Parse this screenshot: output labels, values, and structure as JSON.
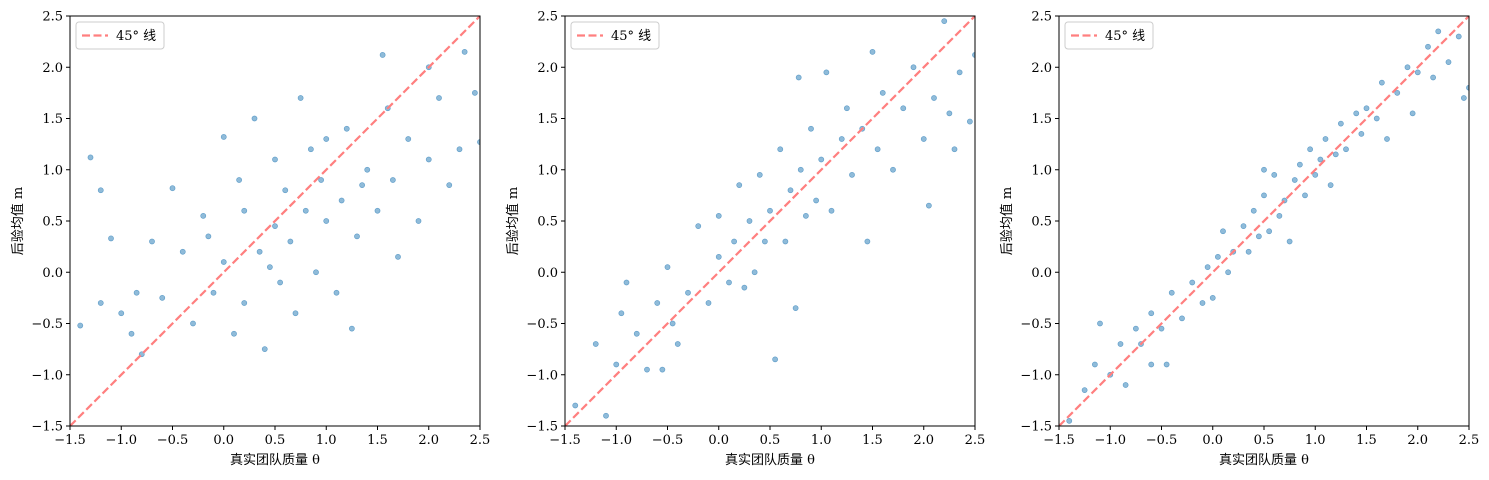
{
  "chart_data": [
    {
      "type": "scatter",
      "xlabel": "真实团队质量 θ",
      "ylabel": "后验均值 m",
      "color": "#1f77b4",
      "diagonal": {
        "label": "45° 线",
        "color": "#ff7f7f",
        "style": "dashed"
      },
      "legend": "upper left",
      "xlim": [
        -1.5,
        2.5
      ],
      "ylim": [
        -1.5,
        2.5
      ],
      "xticks": [
        {
          "value": -1.5,
          "label": "−1.5"
        },
        {
          "value": -1,
          "label": "−1.0"
        },
        {
          "value": -0.5,
          "label": "−0.5"
        },
        {
          "value": 0,
          "label": "0.0"
        },
        0.5,
        {
          "value": 1,
          "label": "1.0"
        },
        1.5,
        {
          "value": 2,
          "label": "2.0"
        },
        2.5
      ],
      "yticks": [
        {
          "value": -1.5,
          "label": "−1.5"
        },
        {
          "value": -1,
          "label": "−1.0"
        },
        {
          "value": -0.5,
          "label": "−0.5"
        },
        {
          "value": 0,
          "label": "0.0"
        },
        0.5,
        {
          "value": 1,
          "label": "1.0"
        },
        1.5,
        {
          "value": 2,
          "label": "2.0"
        },
        2.5
      ],
      "x": [
        -1.3,
        -1.4,
        -1.2,
        -1.2,
        -1.1,
        -1.0,
        -0.9,
        -0.8,
        -0.7,
        -0.6,
        -0.5,
        -0.4,
        -0.3,
        -0.2,
        -0.1,
        0.0,
        0.0,
        0.1,
        0.2,
        0.2,
        0.3,
        0.35,
        0.4,
        0.5,
        0.5,
        0.55,
        0.6,
        0.65,
        0.7,
        0.75,
        0.8,
        0.85,
        0.9,
        0.95,
        1.0,
        1.0,
        1.1,
        1.15,
        1.2,
        1.25,
        1.3,
        1.4,
        1.5,
        1.55,
        1.6,
        1.65,
        1.7,
        1.8,
        1.9,
        2.0,
        2.0,
        2.1,
        2.2,
        2.3,
        2.35,
        2.45,
        2.5,
        -0.85,
        0.45,
        1.35,
        -0.15,
        0.15
      ],
      "values": [
        1.12,
        -0.52,
        0.8,
        -0.3,
        0.33,
        -0.4,
        -0.6,
        -0.8,
        0.3,
        -0.25,
        0.82,
        0.2,
        -0.5,
        0.55,
        -0.2,
        1.32,
        0.1,
        -0.6,
        0.6,
        -0.3,
        1.5,
        0.2,
        -0.75,
        1.1,
        0.45,
        -0.1,
        0.8,
        0.3,
        -0.4,
        1.7,
        0.6,
        1.2,
        0.0,
        0.9,
        1.3,
        0.5,
        -0.2,
        0.7,
        1.4,
        -0.55,
        0.35,
        1.0,
        0.6,
        2.12,
        1.6,
        0.9,
        0.15,
        1.3,
        0.5,
        1.1,
        2.0,
        1.7,
        0.85,
        1.2,
        2.15,
        1.75,
        1.27,
        -0.2,
        0.05,
        0.85,
        0.35,
        0.9
      ]
    },
    {
      "type": "scatter",
      "xlabel": "真实团队质量 θ",
      "ylabel": "后验均值 m",
      "color": "#1f77b4",
      "diagonal": {
        "label": "45° 线",
        "color": "#ff7f7f",
        "style": "dashed"
      },
      "legend": "upper left",
      "xlim": [
        -1.5,
        2.5
      ],
      "ylim": [
        -1.5,
        2.5
      ],
      "xticks": [
        {
          "value": -1.5,
          "label": "−1.5"
        },
        {
          "value": -1,
          "label": "−1.0"
        },
        {
          "value": -0.5,
          "label": "−0.5"
        },
        {
          "value": 0,
          "label": "0.0"
        },
        0.5,
        {
          "value": 1,
          "label": "1.0"
        },
        1.5,
        {
          "value": 2,
          "label": "2.0"
        },
        2.5
      ],
      "yticks": [
        {
          "value": -1.5,
          "label": "−1.5"
        },
        {
          "value": -1,
          "label": "−1.0"
        },
        {
          "value": -0.5,
          "label": "−0.5"
        },
        {
          "value": 0,
          "label": "0.0"
        },
        0.5,
        {
          "value": 1,
          "label": "1.0"
        },
        1.5,
        {
          "value": 2,
          "label": "2.0"
        },
        2.5
      ],
      "x": [
        -1.4,
        -1.2,
        -1.1,
        -1.0,
        -0.95,
        -0.9,
        -0.8,
        -0.7,
        -0.6,
        -0.5,
        -0.45,
        -0.4,
        -0.3,
        -0.2,
        -0.1,
        0.0,
        0.0,
        0.1,
        0.15,
        0.2,
        0.25,
        0.3,
        0.35,
        0.4,
        0.45,
        0.5,
        0.55,
        0.6,
        0.65,
        0.7,
        0.75,
        0.8,
        0.85,
        0.9,
        0.95,
        1.0,
        1.05,
        1.1,
        1.2,
        1.25,
        1.3,
        1.4,
        1.45,
        1.5,
        1.55,
        1.6,
        1.7,
        1.8,
        1.9,
        2.0,
        2.05,
        2.1,
        2.2,
        2.25,
        2.3,
        2.35,
        2.45,
        2.5,
        0.78,
        -0.55
      ],
      "values": [
        -1.3,
        -0.7,
        -1.4,
        -0.9,
        -0.4,
        -0.1,
        -0.6,
        -0.95,
        -0.3,
        0.05,
        -0.5,
        -0.7,
        -0.2,
        0.45,
        -0.3,
        0.15,
        0.55,
        -0.1,
        0.3,
        0.85,
        -0.15,
        0.5,
        0.0,
        0.95,
        0.3,
        0.6,
        -0.85,
        1.2,
        0.3,
        0.8,
        -0.35,
        1.0,
        0.55,
        1.4,
        0.7,
        1.1,
        1.95,
        0.6,
        1.3,
        1.6,
        0.95,
        1.4,
        0.3,
        2.15,
        1.2,
        1.75,
        1.0,
        1.6,
        2.0,
        1.3,
        0.65,
        1.7,
        2.45,
        1.55,
        1.2,
        1.95,
        1.47,
        2.12,
        1.9,
        -0.95
      ]
    },
    {
      "type": "scatter",
      "xlabel": "真实团队质量 θ",
      "ylabel": "后验均值 m",
      "color": "#1f77b4",
      "diagonal": {
        "label": "45° 线",
        "color": "#ff7f7f",
        "style": "dashed"
      },
      "legend": "upper left",
      "xlim": [
        -1.5,
        2.5
      ],
      "ylim": [
        -1.5,
        2.5
      ],
      "xticks": [
        {
          "value": -1.5,
          "label": "−1.5"
        },
        {
          "value": -1,
          "label": "−1.0"
        },
        {
          "value": -0.5,
          "label": "−0.5"
        },
        {
          "value": 0,
          "label": "0.0"
        },
        0.5,
        {
          "value": 1,
          "label": "1.0"
        },
        1.5,
        {
          "value": 2,
          "label": "2.0"
        },
        2.5
      ],
      "yticks": [
        {
          "value": -1.5,
          "label": "−1.5"
        },
        {
          "value": -1,
          "label": "−1.0"
        },
        {
          "value": -0.5,
          "label": "−0.5"
        },
        {
          "value": 0,
          "label": "0.0"
        },
        0.5,
        {
          "value": 1,
          "label": "1.0"
        },
        1.5,
        {
          "value": 2,
          "label": "2.0"
        },
        2.5
      ],
      "x": [
        -1.4,
        -1.25,
        -1.15,
        -1.1,
        -1.0,
        -0.9,
        -0.85,
        -0.75,
        -0.7,
        -0.6,
        -0.5,
        -0.45,
        -0.4,
        -0.3,
        -0.2,
        -0.1,
        -0.05,
        0.0,
        0.05,
        0.1,
        0.15,
        0.2,
        0.3,
        0.35,
        0.4,
        0.45,
        0.5,
        0.55,
        0.6,
        0.65,
        0.7,
        0.75,
        0.8,
        0.85,
        0.9,
        0.95,
        1.0,
        1.05,
        1.1,
        1.15,
        1.2,
        1.25,
        1.3,
        1.4,
        1.45,
        1.5,
        1.6,
        1.65,
        1.7,
        1.8,
        1.9,
        1.95,
        2.0,
        2.1,
        2.15,
        2.2,
        2.3,
        2.4,
        2.45,
        2.5,
        -0.6,
        0.5
      ],
      "values": [
        -1.45,
        -1.15,
        -0.9,
        -0.5,
        -1.0,
        -0.7,
        -1.1,
        -0.55,
        -0.7,
        -0.4,
        -0.55,
        -0.9,
        -0.2,
        -0.45,
        -0.1,
        -0.3,
        0.05,
        -0.25,
        0.15,
        0.4,
        0.0,
        0.2,
        0.45,
        0.2,
        0.6,
        0.35,
        0.75,
        0.4,
        0.95,
        0.55,
        0.7,
        0.3,
        0.9,
        1.05,
        0.75,
        1.2,
        0.95,
        1.1,
        1.3,
        0.85,
        1.15,
        1.45,
        1.2,
        1.55,
        1.35,
        1.6,
        1.5,
        1.85,
        1.3,
        1.75,
        2.0,
        1.55,
        1.95,
        2.2,
        1.9,
        2.35,
        2.05,
        2.3,
        1.7,
        1.8,
        -0.9,
        1.0
      ]
    }
  ]
}
